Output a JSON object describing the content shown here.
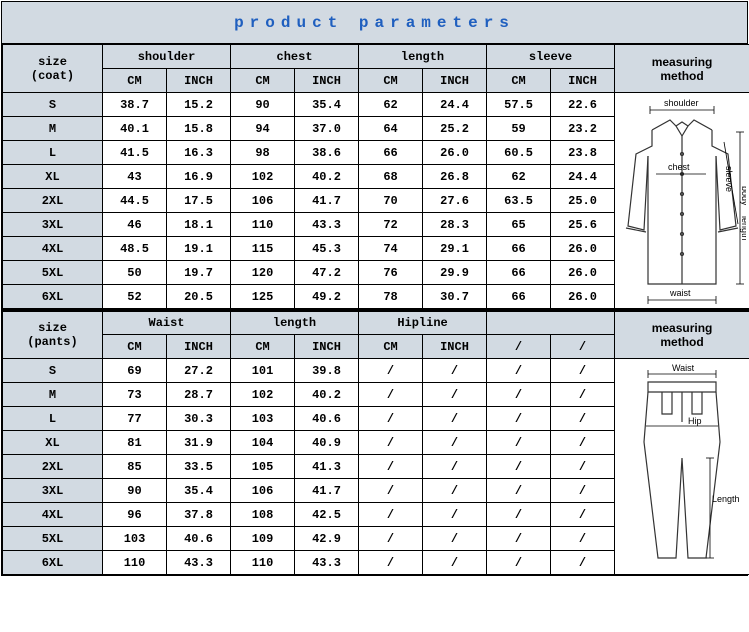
{
  "title": "product parameters",
  "colors": {
    "header_bg": "#d2dae2",
    "border": "#000000",
    "title_text": "#1f5fbf",
    "row_bg": "#ffffff",
    "line": "#333333"
  },
  "coat": {
    "size_header": "size\n(coat)",
    "groups": [
      "shoulder",
      "chest",
      "length",
      "sleeve"
    ],
    "sub_units": [
      "CM",
      "INCH"
    ],
    "measuring_header": "measuring\nmethod",
    "rows": [
      {
        "size": "S",
        "v": [
          "38.7",
          "15.2",
          "90",
          "35.4",
          "62",
          "24.4",
          "57.5",
          "22.6"
        ]
      },
      {
        "size": "M",
        "v": [
          "40.1",
          "15.8",
          "94",
          "37.0",
          "64",
          "25.2",
          "59",
          "23.2"
        ]
      },
      {
        "size": "L",
        "v": [
          "41.5",
          "16.3",
          "98",
          "38.6",
          "66",
          "26.0",
          "60.5",
          "23.8"
        ]
      },
      {
        "size": "XL",
        "v": [
          "43",
          "16.9",
          "102",
          "40.2",
          "68",
          "26.8",
          "62",
          "24.4"
        ]
      },
      {
        "size": "2XL",
        "v": [
          "44.5",
          "17.5",
          "106",
          "41.7",
          "70",
          "27.6",
          "63.5",
          "25.0"
        ]
      },
      {
        "size": "3XL",
        "v": [
          "46",
          "18.1",
          "110",
          "43.3",
          "72",
          "28.3",
          "65",
          "25.6"
        ]
      },
      {
        "size": "4XL",
        "v": [
          "48.5",
          "19.1",
          "115",
          "45.3",
          "74",
          "29.1",
          "66",
          "26.0"
        ]
      },
      {
        "size": "5XL",
        "v": [
          "50",
          "19.7",
          "120",
          "47.2",
          "76",
          "29.9",
          "66",
          "26.0"
        ]
      },
      {
        "size": "6XL",
        "v": [
          "52",
          "20.5",
          "125",
          "49.2",
          "78",
          "30.7",
          "66",
          "26.0"
        ]
      }
    ],
    "diagram_labels": {
      "shoulder": "shoulder",
      "chest": "chest",
      "sleeve": "sleeve",
      "body_length": "body\nlength",
      "waist": "waist"
    }
  },
  "pants": {
    "size_header": "size\n(pants)",
    "groups": [
      "Waist",
      "length",
      "Hipline",
      ""
    ],
    "sub_units": [
      "CM",
      "INCH",
      "CM",
      "INCH",
      "CM",
      "INCH",
      "/",
      "/"
    ],
    "measuring_header": "measuring\nmethod",
    "rows": [
      {
        "size": "S",
        "v": [
          "69",
          "27.2",
          "101",
          "39.8",
          "/",
          "/",
          "/",
          "/"
        ]
      },
      {
        "size": "M",
        "v": [
          "73",
          "28.7",
          "102",
          "40.2",
          "/",
          "/",
          "/",
          "/"
        ]
      },
      {
        "size": "L",
        "v": [
          "77",
          "30.3",
          "103",
          "40.6",
          "/",
          "/",
          "/",
          "/"
        ]
      },
      {
        "size": "XL",
        "v": [
          "81",
          "31.9",
          "104",
          "40.9",
          "/",
          "/",
          "/",
          "/"
        ]
      },
      {
        "size": "2XL",
        "v": [
          "85",
          "33.5",
          "105",
          "41.3",
          "/",
          "/",
          "/",
          "/"
        ]
      },
      {
        "size": "3XL",
        "v": [
          "90",
          "35.4",
          "106",
          "41.7",
          "/",
          "/",
          "/",
          "/"
        ]
      },
      {
        "size": "4XL",
        "v": [
          "96",
          "37.8",
          "108",
          "42.5",
          "/",
          "/",
          "/",
          "/"
        ]
      },
      {
        "size": "5XL",
        "v": [
          "103",
          "40.6",
          "109",
          "42.9",
          "/",
          "/",
          "/",
          "/"
        ]
      },
      {
        "size": "6XL",
        "v": [
          "110",
          "43.3",
          "110",
          "43.3",
          "/",
          "/",
          "/",
          "/"
        ]
      }
    ],
    "diagram_labels": {
      "waist": "Waist",
      "hip": "Hip",
      "length": "Length"
    }
  }
}
